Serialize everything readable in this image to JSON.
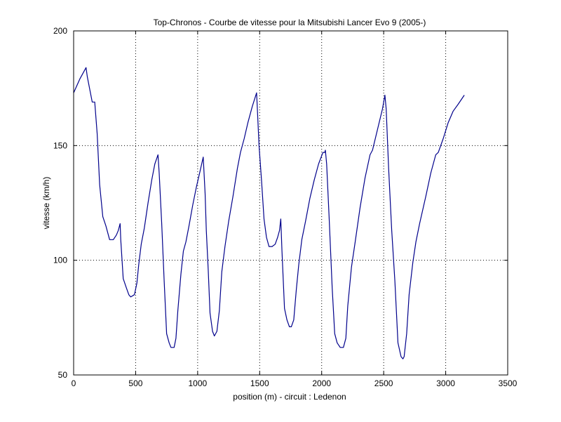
{
  "chart_data": {
    "type": "line",
    "title": "Top-Chronos - Courbe de vitesse pour la Mitsubishi Lancer Evo 9 (2005-)",
    "xlabel": "position (m) - circuit : Ledenon",
    "ylabel": "vitesse (km/h)",
    "xlim": [
      0,
      3500
    ],
    "ylim": [
      50,
      200
    ],
    "xticks": [
      0,
      500,
      1000,
      1500,
      2000,
      2500,
      3000,
      3500
    ],
    "yticks": [
      50,
      100,
      150,
      200
    ],
    "grid": true,
    "line_color": "#00008b",
    "series": [
      {
        "x": [
          0,
          50,
          100,
          110,
          150,
          170,
          190,
          210,
          235,
          260,
          290,
          320,
          345,
          360,
          375,
          380,
          400,
          425,
          445,
          460,
          490,
          510,
          525,
          545,
          570,
          600,
          630,
          655,
          680,
          690,
          710,
          730,
          750,
          770,
          785,
          810,
          825,
          840,
          865,
          885,
          905,
          930,
          960,
          990,
          1020,
          1045,
          1060,
          1070,
          1085,
          1100,
          1120,
          1135,
          1155,
          1175,
          1195,
          1220,
          1250,
          1285,
          1320,
          1345,
          1375,
          1405,
          1440,
          1475,
          1480,
          1495,
          1515,
          1535,
          1555,
          1575,
          1600,
          1625,
          1645,
          1660,
          1670,
          1680,
          1700,
          1720,
          1740,
          1755,
          1775,
          1795,
          1815,
          1840,
          1870,
          1905,
          1940,
          1975,
          2010,
          2025,
          2030,
          2040,
          2060,
          2085,
          2105,
          2125,
          2150,
          2175,
          2195,
          2210,
          2240,
          2270,
          2310,
          2350,
          2390,
          2410,
          2450,
          2490,
          2510,
          2520,
          2540,
          2565,
          2590,
          2615,
          2640,
          2655,
          2665,
          2685,
          2705,
          2735,
          2760,
          2790,
          2840,
          2880,
          2920,
          2940,
          2980,
          3020,
          3060,
          3100,
          3150
        ],
        "y": [
          173,
          179,
          184,
          180,
          169,
          169,
          155,
          133,
          119,
          115,
          109,
          109,
          111,
          113,
          116,
          109,
          92,
          88,
          85,
          84,
          85,
          90,
          98,
          107,
          114,
          125,
          135,
          142,
          146,
          138,
          116,
          91,
          68,
          64,
          62,
          62,
          66,
          78,
          94,
          104,
          108,
          115,
          124,
          132,
          139,
          145,
          129,
          113,
          96,
          77,
          69,
          67,
          69,
          78,
          95,
          106,
          117,
          128,
          140,
          147,
          153,
          160,
          167,
          173,
          168,
          150,
          135,
          118,
          110,
          106,
          106,
          107,
          110,
          113,
          118,
          104,
          79,
          74,
          71,
          71,
          74,
          87,
          98,
          109,
          117,
          127,
          135,
          142,
          147,
          147,
          148,
          142,
          119,
          88,
          68,
          64,
          62,
          62,
          66,
          80,
          97,
          108,
          123,
          136,
          146,
          148,
          157,
          166,
          172,
          166,
          140,
          113,
          91,
          64,
          58,
          57,
          58,
          68,
          85,
          99,
          108,
          116,
          128,
          138,
          146,
          147,
          153,
          160,
          165,
          168,
          172
        ]
      }
    ]
  }
}
